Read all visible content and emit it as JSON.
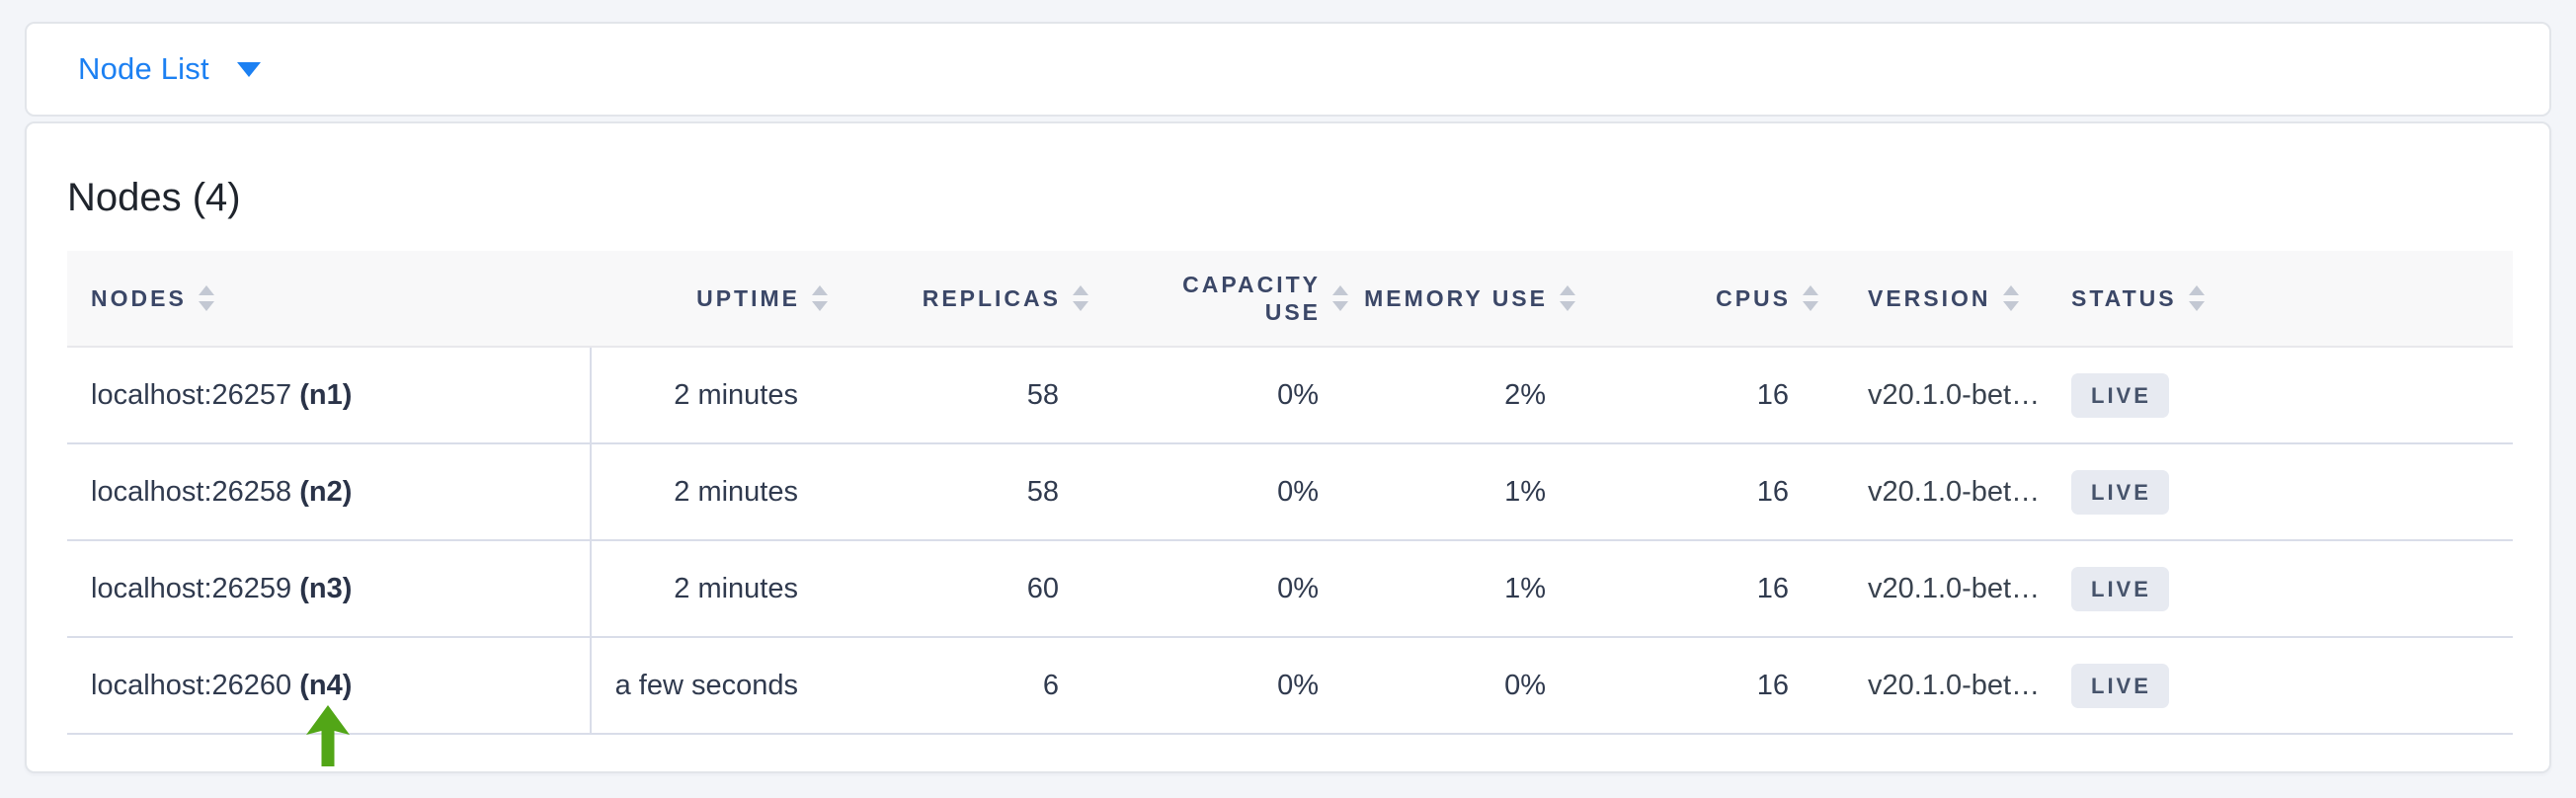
{
  "selector": {
    "label": "Node List"
  },
  "title": "Nodes (4)",
  "table": {
    "columns": [
      {
        "id": "nodes",
        "label": "NODES",
        "align": "left"
      },
      {
        "id": "uptime",
        "label": "UPTIME",
        "align": "right"
      },
      {
        "id": "replicas",
        "label": "REPLICAS",
        "align": "right"
      },
      {
        "id": "capacity_use",
        "label": "CAPACITY USE",
        "align": "right"
      },
      {
        "id": "memory_use",
        "label": "MEMORY USE",
        "align": "right"
      },
      {
        "id": "cpus",
        "label": "CPUS",
        "align": "right"
      },
      {
        "id": "version",
        "label": "VERSION",
        "align": "left"
      },
      {
        "id": "status",
        "label": "STATUS",
        "align": "left"
      }
    ],
    "rows": [
      {
        "nodes": {
          "address": "localhost:26257",
          "name": "(n1)"
        },
        "uptime": "2 minutes",
        "replicas": "58",
        "capacity_use": "0%",
        "memory_use": "2%",
        "cpus": "16",
        "version": "v20.1.0-bet…",
        "status": "LIVE"
      },
      {
        "nodes": {
          "address": "localhost:26258",
          "name": "(n2)"
        },
        "uptime": "2 minutes",
        "replicas": "58",
        "capacity_use": "0%",
        "memory_use": "1%",
        "cpus": "16",
        "version": "v20.1.0-bet…",
        "status": "LIVE"
      },
      {
        "nodes": {
          "address": "localhost:26259",
          "name": "(n3)"
        },
        "uptime": "2 minutes",
        "replicas": "60",
        "capacity_use": "0%",
        "memory_use": "1%",
        "cpus": "16",
        "version": "v20.1.0-bet…",
        "status": "LIVE"
      },
      {
        "nodes": {
          "address": "localhost:26260",
          "name": "(n4)"
        },
        "uptime": "a few seconds",
        "replicas": "6",
        "capacity_use": "0%",
        "memory_use": "0%",
        "cpus": "16",
        "version": "v20.1.0-bet…",
        "status": "LIVE"
      }
    ]
  },
  "annotation": {
    "type": "arrow-up",
    "color": "#52a617"
  },
  "colors": {
    "accent_blue": "#1c80f2",
    "page_background": "#f3f5f9",
    "header_text": "#3b4767",
    "badge_background": "#e7eaf1",
    "badge_text": "#46536b",
    "row_border": "#d9dde9"
  }
}
